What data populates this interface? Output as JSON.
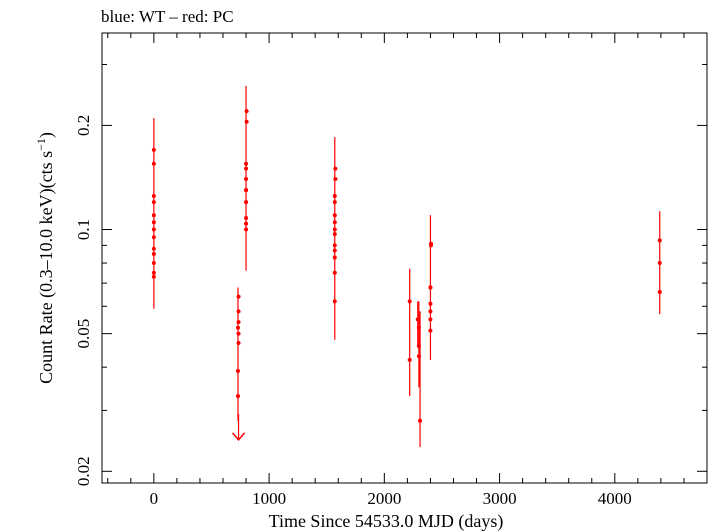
{
  "chart_data": {
    "type": "scatter",
    "title": "blue: WT – red: PC",
    "xlabel": "Time Since 54533.0 MJD (days)",
    "ylabel_main": "Count Rate (0.3–10.0 keV)(cts s",
    "ylabel_sup": "−1",
    "ylabel_close": ")",
    "xlim": [
      -450,
      4800
    ],
    "ylim": [
      0.0185,
      0.37
    ],
    "y_scale": "log",
    "grid": false,
    "x_ticks": [
      0,
      1000,
      2000,
      3000,
      4000
    ],
    "x_tick_labels": [
      "0",
      "1000",
      "2000",
      "3000",
      "4000"
    ],
    "y_ticks": [
      0.02,
      0.05,
      0.1,
      0.2
    ],
    "y_tick_labels": [
      "0.02",
      "0.05",
      "0.1",
      "0.2"
    ],
    "colors": {
      "PC": "#ff0000",
      "WT": "#0000ff"
    },
    "series": [
      {
        "name": "PC",
        "color": "#ff0000",
        "points": [
          {
            "x": 0,
            "y": 0.11,
            "ylo": 0.059,
            "yhi": 0.21
          },
          {
            "x": 0,
            "y": 0.17
          },
          {
            "x": 0,
            "y": 0.155
          },
          {
            "x": 0,
            "y": 0.125
          },
          {
            "x": 0,
            "y": 0.12
          },
          {
            "x": 0,
            "y": 0.105
          },
          {
            "x": 0,
            "y": 0.1
          },
          {
            "x": 0,
            "y": 0.095
          },
          {
            "x": 0,
            "y": 0.088
          },
          {
            "x": 0,
            "y": 0.085
          },
          {
            "x": 0,
            "y": 0.08
          },
          {
            "x": 0,
            "y": 0.075
          },
          {
            "x": 0,
            "y": 0.073
          },
          {
            "x": 730,
            "y": 0.052,
            "ylo": 0.028,
            "yhi": 0.068
          },
          {
            "x": 735,
            "y": 0.064
          },
          {
            "x": 735,
            "y": 0.058
          },
          {
            "x": 735,
            "y": 0.054
          },
          {
            "x": 735,
            "y": 0.05
          },
          {
            "x": 735,
            "y": 0.047
          },
          {
            "x": 730,
            "y": 0.033
          },
          {
            "x": 730,
            "y": 0.039
          },
          {
            "x": 800,
            "y": 0.13,
            "ylo": 0.076,
            "yhi": 0.26
          },
          {
            "x": 805,
            "y": 0.22
          },
          {
            "x": 805,
            "y": 0.205
          },
          {
            "x": 800,
            "y": 0.155
          },
          {
            "x": 800,
            "y": 0.15
          },
          {
            "x": 800,
            "y": 0.14
          },
          {
            "x": 800,
            "y": 0.13
          },
          {
            "x": 800,
            "y": 0.12
          },
          {
            "x": 800,
            "y": 0.108
          },
          {
            "x": 800,
            "y": 0.104
          },
          {
            "x": 800,
            "y": 0.1
          },
          {
            "x": 1570,
            "y": 0.1,
            "ylo": 0.048,
            "yhi": 0.185
          },
          {
            "x": 1575,
            "y": 0.15
          },
          {
            "x": 1575,
            "y": 0.14
          },
          {
            "x": 1570,
            "y": 0.125
          },
          {
            "x": 1570,
            "y": 0.12
          },
          {
            "x": 1570,
            "y": 0.11
          },
          {
            "x": 1570,
            "y": 0.105
          },
          {
            "x": 1570,
            "y": 0.097
          },
          {
            "x": 1570,
            "y": 0.09
          },
          {
            "x": 1570,
            "y": 0.087
          },
          {
            "x": 1570,
            "y": 0.083
          },
          {
            "x": 1570,
            "y": 0.075
          },
          {
            "x": 1570,
            "y": 0.062
          },
          {
            "x": 2220,
            "y": 0.062,
            "ylo": 0.033,
            "yhi": 0.077
          },
          {
            "x": 2220,
            "y": 0.042
          },
          {
            "x": 2290,
            "y": 0.055,
            "ylo": 0.046,
            "yhi": 0.062
          },
          {
            "x": 2300,
            "y": 0.052,
            "ylo": 0.035,
            "yhi": 0.062
          },
          {
            "x": 2310,
            "y": 0.028,
            "ylo": 0.0235,
            "yhi": 0.058
          },
          {
            "x": 2300,
            "y": 0.046
          },
          {
            "x": 2300,
            "y": 0.043
          },
          {
            "x": 2400,
            "y": 0.068,
            "ylo": 0.042,
            "yhi": 0.11
          },
          {
            "x": 2405,
            "y": 0.091
          },
          {
            "x": 2405,
            "y": 0.09
          },
          {
            "x": 2400,
            "y": 0.068
          },
          {
            "x": 2400,
            "y": 0.061
          },
          {
            "x": 2400,
            "y": 0.058
          },
          {
            "x": 2400,
            "y": 0.055
          },
          {
            "x": 2400,
            "y": 0.051
          },
          {
            "x": 4390,
            "y": 0.08,
            "ylo": 0.057,
            "yhi": 0.113
          },
          {
            "x": 4390,
            "y": 0.093
          },
          {
            "x": 4390,
            "y": 0.066
          }
        ],
        "upper_limits": [
          {
            "x": 735,
            "y": 0.026
          }
        ]
      }
    ]
  }
}
